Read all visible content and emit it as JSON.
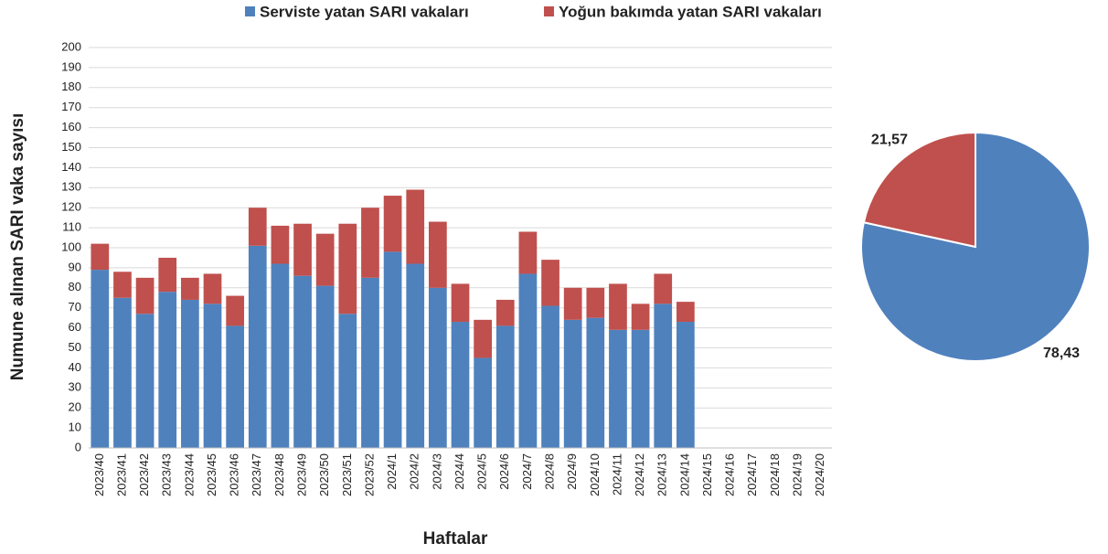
{
  "chart_data": [
    {
      "type": "bar",
      "stacked": true,
      "x_label": "Haftalar",
      "y_label": "Numune alınan SARI vaka sayısı",
      "categories": [
        "2023/40",
        "2023/41",
        "2023/42",
        "2023/43",
        "2023/44",
        "2023/45",
        "2023/46",
        "2023/47",
        "2023/48",
        "2023/49",
        "2023/50",
        "2023/51",
        "2023/52",
        "2024/1",
        "2024/2",
        "2024/3",
        "2024/4",
        "2024/5",
        "2024/6",
        "2024/7",
        "2024/8",
        "2024/9",
        "2024/10",
        "2024/11",
        "2024/12",
        "2024/13",
        "2024/14",
        "2024/15",
        "2024/16",
        "2024/17",
        "2024/18",
        "2024/19",
        "2024/20"
      ],
      "series": [
        {
          "name": "Serviste yatan SARI vakaları",
          "color": "#4f81bd",
          "values": [
            89,
            75,
            67,
            78,
            74,
            72,
            61,
            101,
            92,
            86,
            81,
            67,
            85,
            98,
            92,
            80,
            63,
            45,
            61,
            87,
            71,
            64,
            65,
            59,
            59,
            72,
            63,
            null,
            null,
            null,
            null,
            null,
            null
          ]
        },
        {
          "name": "Yoğun bakımda yatan SARI vakaları",
          "color": "#c0504d",
          "values": [
            13,
            13,
            18,
            17,
            11,
            15,
            15,
            19,
            19,
            26,
            26,
            45,
            35,
            28,
            37,
            33,
            19,
            19,
            13,
            21,
            23,
            16,
            15,
            23,
            13,
            15,
            10,
            null,
            null,
            null,
            null,
            null,
            null
          ]
        }
      ],
      "ylim": [
        0,
        200
      ],
      "yticks": [
        0,
        10,
        20,
        30,
        40,
        50,
        60,
        70,
        80,
        90,
        100,
        110,
        120,
        130,
        140,
        150,
        160,
        170,
        180,
        190,
        200
      ],
      "grid": true,
      "legend": "top"
    },
    {
      "type": "pie",
      "values": [
        78.43,
        21.57
      ],
      "value_labels": [
        "78,43",
        "21,57"
      ],
      "colors": [
        "#4f81bd",
        "#c0504d"
      ]
    }
  ]
}
